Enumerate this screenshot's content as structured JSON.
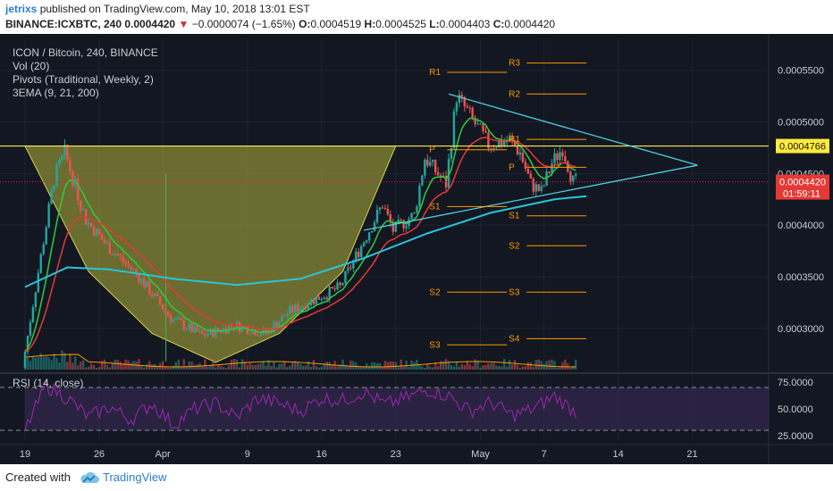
{
  "header": {
    "author": "jetrixs",
    "published": "published on TradingView.com, May 10, 2018 13:01 EST",
    "symbol": "BINANCE:ICXBTC, 240",
    "last": "0.0004420",
    "arrow": "▼",
    "change": "−0.0000074 (−1.65%)",
    "o_label": "O:",
    "o": "0.0004519",
    "h_label": "H:",
    "h": "0.0004525",
    "l_label": "L:",
    "l": "0.0004403",
    "c_label": "C:",
    "c": "0.0004420"
  },
  "legend": {
    "title": "ICON / Bitcoin, 240, BINANCE",
    "vol": "Vol (20)",
    "pivots": "Pivots (Traditional, Weekly, 2)",
    "ema": "3EMA (9, 21, 200)"
  },
  "rsi_legend": "RSI (14, close)",
  "price_badges": {
    "resistance": "0.0004766",
    "last": "0.0004420",
    "timer": "01:59:11"
  },
  "footer": {
    "created": "Created with",
    "brand": "TradingView"
  },
  "colors": {
    "background": "#131722",
    "up": "#26a69a",
    "down": "#ef5350",
    "ema_fast": "#2ecc40",
    "ema_mid": "#e53935",
    "ema_slow": "#26c6da",
    "cup_fill": "#b5b33a",
    "resistance": "#ffeb3b",
    "trendline": "#4dd0e1",
    "pivot": "#ff9800",
    "rsi": "#9c27b0"
  },
  "chart_data": [
    {
      "type": "candlestick",
      "title": "ICON / Bitcoin, 240, BINANCE",
      "ylim": [
        0.00026,
        0.00058
      ],
      "y_ticks": [
        "0.0005500",
        "0.0005000",
        "0.0004500",
        "0.0004000",
        "0.0003500",
        "0.0003000"
      ],
      "y_tick_values": [
        0.00055,
        0.0005,
        0.00045,
        0.0004,
        0.00035,
        0.0003
      ],
      "x_ticks": [
        "19",
        "26",
        "Apr",
        "9",
        "16",
        "23",
        "May",
        "7",
        "14",
        "21"
      ],
      "x_tick_days": [
        0,
        7,
        13,
        21,
        28,
        35,
        43,
        49,
        56,
        63
      ],
      "date_start_label": "19",
      "key_levels": [
        {
          "name": "resistance",
          "value": 0.0004766
        },
        {
          "name": "last",
          "value": 0.000442
        }
      ],
      "price_path_days": [
        0,
        2,
        3,
        4,
        6,
        8,
        11,
        14,
        17,
        20,
        23,
        25,
        28,
        30,
        32,
        34,
        35,
        37,
        38,
        40,
        41,
        42,
        44,
        46,
        47,
        48,
        49,
        50,
        51,
        52
      ],
      "price_path_values": [
        0.000262,
        0.000385,
        0.000445,
        0.00047,
        0.000405,
        0.00038,
        0.00035,
        0.00031,
        0.000293,
        0.000303,
        0.000295,
        0.000315,
        0.00033,
        0.00034,
        0.00038,
        0.00042,
        0.000395,
        0.00041,
        0.000465,
        0.00044,
        0.000525,
        0.00051,
        0.000478,
        0.000482,
        0.00047,
        0.00044,
        0.000432,
        0.00046,
        0.000475,
        0.000442
      ],
      "ema200_days": [
        0,
        4,
        8,
        14,
        20,
        26,
        32,
        38,
        44,
        50,
        53
      ],
      "ema200_values": [
        0.00034,
        0.000359,
        0.000357,
        0.000348,
        0.000342,
        0.000348,
        0.000368,
        0.000392,
        0.000412,
        0.000425,
        0.000428
      ],
      "cup_days": [
        0,
        6,
        12,
        18,
        24,
        30,
        35
      ],
      "cup_values": [
        0.0004766,
        0.000355,
        0.000295,
        0.000267,
        0.000295,
        0.000355,
        0.0004766
      ],
      "trendline_upper": {
        "from": [
          40,
          0.000527
        ],
        "to": [
          63.5,
          0.000458
        ]
      },
      "trendline_lower": {
        "from": [
          32,
          0.000395
        ],
        "to": [
          63.5,
          0.000458
        ]
      },
      "pivots": [
        {
          "label": "R1",
          "value": 0.000548,
          "from": 38,
          "to": 45.5
        },
        {
          "label": "P",
          "value": 0.000473,
          "from": 38,
          "to": 45.5
        },
        {
          "label": "S1",
          "value": 0.000418,
          "from": 38,
          "to": 45.5
        },
        {
          "label": "S2",
          "value": 0.000335,
          "from": 38,
          "to": 45.5
        },
        {
          "label": "S3",
          "value": 0.000284,
          "from": 38,
          "to": 45.5
        },
        {
          "label": "R3",
          "value": 0.000557,
          "from": 45.5,
          "to": 53
        },
        {
          "label": "R2",
          "value": 0.000527,
          "from": 45.5,
          "to": 53
        },
        {
          "label": "R1",
          "value": 0.000483,
          "from": 45.5,
          "to": 53
        },
        {
          "label": "P",
          "value": 0.000456,
          "from": 45.5,
          "to": 53
        },
        {
          "label": "S1",
          "value": 0.000409,
          "from": 45.5,
          "to": 53
        },
        {
          "label": "S2",
          "value": 0.00038,
          "from": 45.5,
          "to": 53
        },
        {
          "label": "S3",
          "value": 0.000335,
          "from": 45.5,
          "to": 53
        },
        {
          "label": "S4",
          "value": 0.00029,
          "from": 45.5,
          "to": 53
        }
      ]
    },
    {
      "type": "line",
      "title": "RSI (14, close)",
      "ylim": [
        20,
        80
      ],
      "y_ticks": [
        "75.0000",
        "50.0000",
        "25.0000"
      ],
      "y_tick_values": [
        75,
        50,
        25
      ],
      "bands": [
        70,
        30
      ],
      "rsi_days": [
        0,
        2,
        4,
        6,
        8,
        10,
        12,
        14,
        16,
        18,
        20,
        22,
        24,
        26,
        28,
        30,
        32,
        34,
        36,
        38,
        40,
        42,
        44,
        46,
        48,
        50,
        52
      ],
      "rsi_values": [
        30,
        72,
        60,
        42,
        52,
        40,
        55,
        35,
        50,
        55,
        42,
        60,
        55,
        48,
        60,
        58,
        66,
        54,
        60,
        68,
        62,
        48,
        56,
        44,
        50,
        62,
        47
      ]
    }
  ]
}
